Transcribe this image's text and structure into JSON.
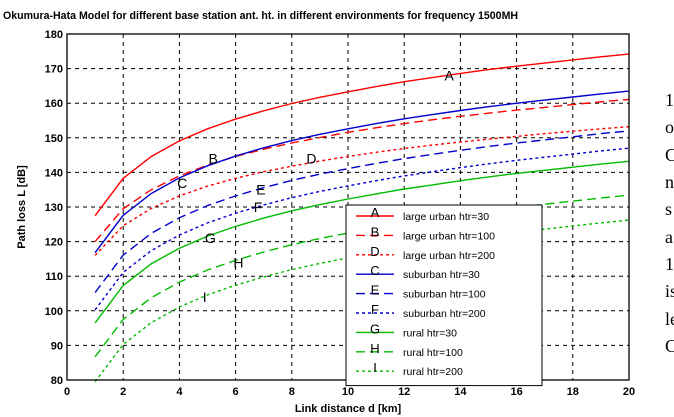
{
  "chart_data": {
    "type": "line",
    "title": "Okumura-Hata Model for different base station ant. ht. in different environments for frequency 1500MH",
    "xlabel": "Link distance d [km]",
    "ylabel": "Path loss L [dB]",
    "xlim": [
      0,
      20
    ],
    "ylim": [
      80,
      180
    ],
    "xticks": [
      0,
      2,
      4,
      6,
      8,
      10,
      12,
      14,
      16,
      18,
      20
    ],
    "yticks": [
      80,
      90,
      100,
      110,
      120,
      130,
      140,
      150,
      160,
      170,
      180
    ],
    "grid": true,
    "legend_position": "lower-right",
    "x": [
      1,
      2,
      3,
      4,
      5,
      6,
      7,
      8,
      9,
      10,
      11,
      12,
      13,
      14,
      15,
      16,
      17,
      18,
      19,
      20
    ],
    "series": [
      {
        "name": "large urban htr=30",
        "marker": "A",
        "color": "#ff0000",
        "dash": "solid",
        "label_pos": [
          13.6,
          168
        ],
        "values": [
          127.5,
          138.3,
          144.6,
          149.1,
          152.6,
          155.4,
          157.8,
          159.9,
          161.7,
          163.3,
          164.8,
          166.2,
          167.4,
          168.6,
          169.7,
          170.7,
          171.6,
          172.5,
          173.4,
          174.2
        ]
      },
      {
        "name": "large urban htr=100",
        "marker": "B",
        "color": "#ff0000",
        "dash": "dashed",
        "label_pos": [
          5.2,
          144
        ],
        "values": [
          120.0,
          129.5,
          135.0,
          139.0,
          142.1,
          144.6,
          146.7,
          148.5,
          150.1,
          151.6,
          152.9,
          154.1,
          155.2,
          156.2,
          157.1,
          158.0,
          158.8,
          159.6,
          160.4,
          161.1
        ]
      },
      {
        "name": "large urban htr=200",
        "marker": "D",
        "color": "#ff0000",
        "dash": "dotted",
        "label_pos": [
          8.7,
          144
        ],
        "values": [
          116.0,
          124.6,
          129.6,
          133.2,
          136.0,
          138.3,
          140.2,
          141.8,
          143.3,
          144.6,
          145.8,
          146.9,
          147.9,
          148.8,
          149.6,
          150.4,
          151.2,
          151.9,
          152.6,
          153.2
        ]
      },
      {
        "name": "suburban htr=30",
        "marker": "C",
        "color": "#0000cc",
        "dash": "solid",
        "label_pos": [
          4.1,
          137
        ],
        "values": [
          116.8,
          127.6,
          133.9,
          138.4,
          141.9,
          144.7,
          147.1,
          149.2,
          151.0,
          152.6,
          154.1,
          155.5,
          156.7,
          157.9,
          159.0,
          160.0,
          160.9,
          161.8,
          162.7,
          163.5
        ]
      },
      {
        "name": "suburban htr=100",
        "marker": "E",
        "color": "#0000cc",
        "dash": "dashed",
        "label_pos": [
          6.9,
          135
        ]
      },
      {
        "name": "suburban htr=200",
        "marker": "F",
        "color": "#0000cc",
        "dash": "dotted",
        "label_pos": [
          6.8,
          130
        ]
      },
      {
        "name": "rural htr=30",
        "marker": "G",
        "color": "#00bb00",
        "dash": "solid",
        "label_pos": [
          5.1,
          121
        ]
      },
      {
        "name": "rural htr=100",
        "marker": "H",
        "color": "#00bb00",
        "dash": "dashed",
        "label_pos": [
          6.1,
          114
        ]
      },
      {
        "name": "rural htr=200",
        "marker": "I",
        "color": "#00bb00",
        "dash": "dotted",
        "label_pos": [
          4.9,
          104
        ]
      }
    ]
  },
  "side_text": [
    "1",
    "o",
    "C",
    "n",
    "s",
    "a",
    "1",
    "is",
    "le",
    "C"
  ]
}
